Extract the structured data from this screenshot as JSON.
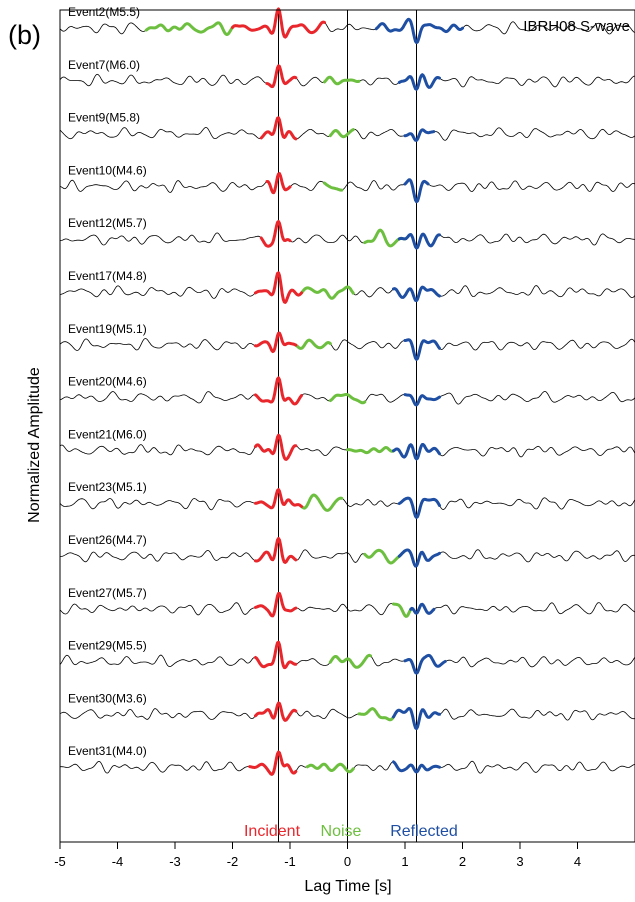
{
  "panel_label": "(b)",
  "chart_data": {
    "type": "line",
    "title": "IBRH08 S-wave",
    "xlabel": "Lag Time [s]",
    "ylabel": "Normalized Amplitude",
    "xlim": [
      -5,
      5
    ],
    "xticks": [
      -5,
      -4,
      -3,
      -2,
      -1,
      0,
      1,
      2,
      3,
      4
    ],
    "vertical_lines": [
      -1.2,
      0,
      1.2
    ],
    "legend": [
      {
        "label": "Incident",
        "color": "#e8262b"
      },
      {
        "label": "Noise",
        "color": "#6dbf3f"
      },
      {
        "label": "Reflected",
        "color": "#1f4fa3"
      }
    ],
    "trace_color": "#000000",
    "events": [
      {
        "label": "Event2(M5.5)",
        "incident": [
          -2.0,
          -0.4
        ],
        "noise": [
          -3.5,
          -2.0
        ],
        "reflected": [
          0.5,
          2.0
        ]
      },
      {
        "label": "Event7(M6.0)",
        "incident": [
          -1.4,
          -0.9
        ],
        "noise": [
          -0.4,
          0.2
        ],
        "reflected": [
          0.9,
          1.6
        ]
      },
      {
        "label": "Event9(M5.8)",
        "incident": [
          -1.5,
          -0.9
        ],
        "noise": [
          -0.3,
          0.1
        ],
        "reflected": [
          1.0,
          1.5
        ]
      },
      {
        "label": "Event10(M4.6)",
        "incident": [
          -1.4,
          -1.0
        ],
        "noise": [
          -0.4,
          -0.1
        ],
        "reflected": [
          1.0,
          1.4
        ]
      },
      {
        "label": "Event12(M5.7)",
        "incident": [
          -1.5,
          -1.0
        ],
        "noise": [
          0.3,
          1.0
        ],
        "reflected": [
          0.9,
          1.6
        ]
      },
      {
        "label": "Event17(M4.8)",
        "incident": [
          -1.6,
          -0.8
        ],
        "noise": [
          -0.8,
          0.1
        ],
        "reflected": [
          0.8,
          1.6
        ]
      },
      {
        "label": "Event19(M5.1)",
        "incident": [
          -1.6,
          -0.9
        ],
        "noise": [
          -0.9,
          -0.3
        ],
        "reflected": [
          1.0,
          1.6
        ]
      },
      {
        "label": "Event20(M4.6)",
        "incident": [
          -1.6,
          -0.8
        ],
        "noise": [
          -0.3,
          0.3
        ],
        "reflected": [
          1.0,
          1.6
        ]
      },
      {
        "label": "Event21(M6.0)",
        "incident": [
          -1.6,
          -0.9
        ],
        "noise": [
          0.0,
          0.8
        ],
        "reflected": [
          0.8,
          1.6
        ]
      },
      {
        "label": "Event23(M5.1)",
        "incident": [
          -1.6,
          -0.8
        ],
        "noise": [
          -0.8,
          -0.1
        ],
        "reflected": [
          0.9,
          1.6
        ]
      },
      {
        "label": "Event26(M4.7)",
        "incident": [
          -1.6,
          -0.9
        ],
        "noise": [
          0.3,
          1.0
        ],
        "reflected": [
          0.9,
          1.6
        ]
      },
      {
        "label": "Event27(M5.7)",
        "incident": [
          -1.6,
          -0.9
        ],
        "noise": [
          0.8,
          1.1
        ],
        "reflected": [
          1.1,
          1.5
        ]
      },
      {
        "label": "Event29(M5.5)",
        "incident": [
          -1.6,
          -0.9
        ],
        "noise": [
          -0.3,
          0.4
        ],
        "reflected": [
          1.0,
          1.7
        ]
      },
      {
        "label": "Event30(M3.6)",
        "incident": [
          -1.6,
          -0.9
        ],
        "noise": [
          0.2,
          0.8
        ],
        "reflected": [
          0.8,
          1.6
        ]
      },
      {
        "label": "Event31(M4.0)",
        "incident": [
          -1.7,
          -0.9
        ],
        "noise": [
          -0.7,
          0.1
        ],
        "reflected": [
          0.8,
          1.6
        ]
      }
    ]
  }
}
